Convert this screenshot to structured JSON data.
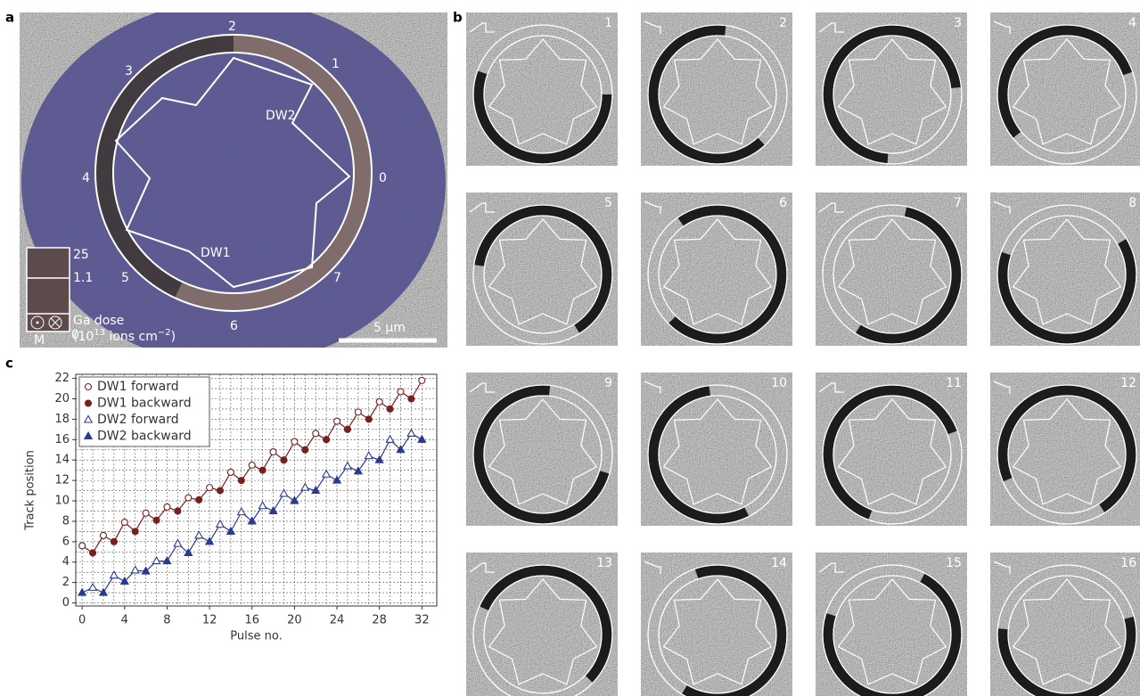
{
  "panel_labels": [
    "a",
    "b",
    "c"
  ],
  "panel_a": {
    "segments": [
      "0",
      "1",
      "2",
      "3",
      "4",
      "5",
      "6",
      "7"
    ],
    "walls": [
      "DW1",
      "DW2"
    ],
    "colorbar_ticks": [
      "25",
      "1.1",
      "0"
    ],
    "magnetization_label": "M",
    "dose_label": "Ga dose",
    "dose_unit": {
      "open": "(10",
      "exp": "13",
      "mid": " ions cm",
      "exp2": "−2",
      "close": ")"
    },
    "scale_bar": "5 µm"
  },
  "panel_b": {
    "frames": [
      "1",
      "2",
      "3",
      "4",
      "5",
      "6",
      "7",
      "8",
      "9",
      "10",
      "11",
      "12",
      "13",
      "14",
      "15",
      "16"
    ]
  },
  "chart_data": {
    "type": "line",
    "x_label": "Pulse no.",
    "y_label": "Track position",
    "xlim": [
      -0.6,
      33.4
    ],
    "ylim": [
      -0.3,
      22.4
    ],
    "xticks": [
      0,
      4,
      8,
      12,
      16,
      20,
      24,
      28,
      32
    ],
    "yticks": [
      0,
      2,
      4,
      6,
      8,
      10,
      12,
      14,
      16,
      18,
      20,
      22
    ],
    "grid": true,
    "legend": "upper-left",
    "series": [
      {
        "name": "DW1 forward",
        "color": "#7a1f1f",
        "marker": "open-circle",
        "x": [
          0,
          2,
          4,
          6,
          8,
          10,
          12,
          14,
          16,
          18,
          20,
          22,
          24,
          26,
          28,
          30,
          32
        ],
        "values": [
          5.6,
          6.6,
          7.9,
          8.8,
          9.4,
          10.3,
          11.3,
          12.8,
          13.5,
          14.8,
          15.8,
          16.6,
          17.8,
          18.7,
          19.7,
          20.7,
          21.8
        ]
      },
      {
        "name": "DW1 backward",
        "color": "#7a1f1f",
        "marker": "filled-circle",
        "x": [
          1,
          3,
          5,
          7,
          9,
          11,
          13,
          15,
          17,
          19,
          21,
          23,
          25,
          27,
          29,
          31
        ],
        "values": [
          4.9,
          6.0,
          7.0,
          8.1,
          9.0,
          10.1,
          11.0,
          12.0,
          13.0,
          14.0,
          15.0,
          16.0,
          17.0,
          18.0,
          19.0,
          20.0
        ]
      },
      {
        "name": "DW2 forward",
        "color": "#2b3a8f",
        "marker": "open-triangle",
        "x": [
          1,
          3,
          5,
          7,
          9,
          11,
          13,
          15,
          17,
          19,
          21,
          23,
          25,
          27,
          29,
          31
        ],
        "values": [
          1.5,
          2.7,
          3.2,
          4.1,
          5.8,
          6.6,
          7.7,
          8.9,
          9.5,
          10.7,
          11.3,
          12.6,
          13.4,
          14.4,
          16.0,
          16.6
        ]
      },
      {
        "name": "DW2 backward",
        "color": "#2b3a8f",
        "marker": "filled-triangle",
        "x": [
          0,
          2,
          4,
          6,
          8,
          10,
          12,
          14,
          16,
          18,
          20,
          22,
          24,
          26,
          28,
          30,
          32
        ],
        "values": [
          1.0,
          1.0,
          2.1,
          3.1,
          4.1,
          4.9,
          6.0,
          7.0,
          8.0,
          9.0,
          10.0,
          11.0,
          12.0,
          12.9,
          14.0,
          15.0,
          16.0
        ]
      }
    ]
  }
}
